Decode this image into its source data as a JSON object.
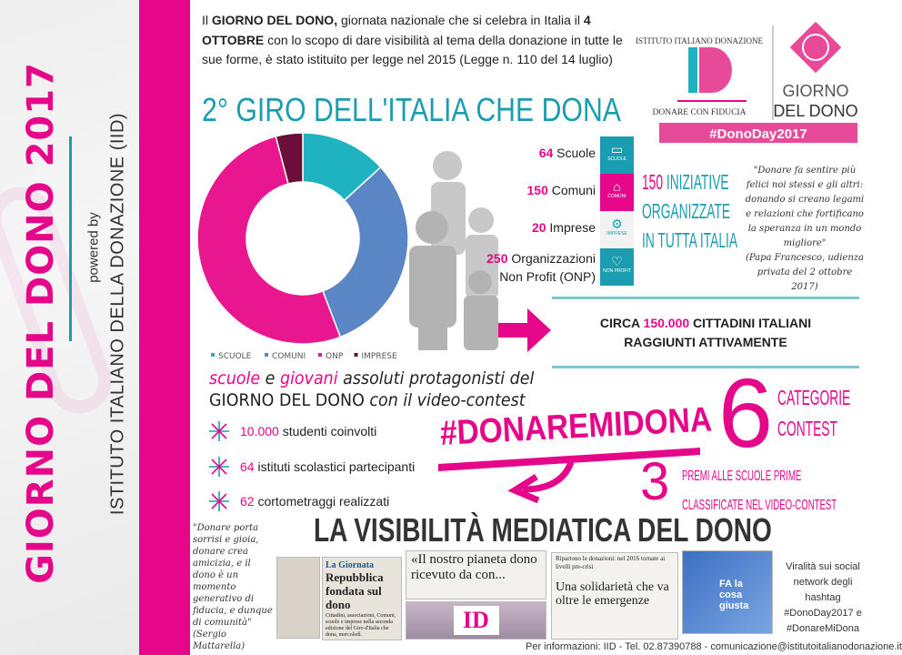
{
  "sidebar": {
    "title": "GIORNO DEL DONO 2017",
    "powered_by": "powered by",
    "organization": "ISTITUTO ITALIANO DELLA DONAZIONE (IID)"
  },
  "intro": {
    "p1": "Il ",
    "b1": "GIORNO DEL DONO,",
    "p2": " giornata nazionale che si celebra in Italia il ",
    "b2": "4 OTTOBRE",
    "p3": " con lo scopo di dare visibilità al tema della donazione in tutte le sue forme, è stato istituito per legge nel 2015 (Legge n. 110 del 14 luglio)"
  },
  "logo": {
    "arc_text": "ISTITUTO ITALIANO DONAZIONE",
    "monogram": "ID",
    "tagline": "DONARE CON FIDUCIA",
    "brand_line1": "GIORNO",
    "brand_line2": "DEL DONO",
    "hashtag": "#DonoDay2017"
  },
  "section_title": "2° GIRO DELL'ITALIA CHE DONA",
  "chart_data": {
    "type": "pie",
    "donut": true,
    "categories": [
      "SCUOLE",
      "COMUNI",
      "ONP",
      "IMPRESE"
    ],
    "values": [
      64,
      150,
      250,
      20
    ],
    "colors": [
      "#1fb3c2",
      "#5b86c6",
      "#e8168f",
      "#6a0f3a"
    ],
    "legend": "bottom"
  },
  "stats": [
    {
      "num": "64",
      "label": " Scuole"
    },
    {
      "num": "150",
      "label": " Comuni"
    },
    {
      "num": "20",
      "label": " Imprese"
    },
    {
      "num": "250",
      "label": " Organizzazioni",
      "label2": "Non Profit (ONP)"
    }
  ],
  "tiles": [
    {
      "icon": "book-icon",
      "glyph": "▭",
      "caption": "SCUOLE",
      "color": "#1a9db0"
    },
    {
      "icon": "building-icon",
      "glyph": "⌂",
      "caption": "COMUNI",
      "color": "#e6068a"
    },
    {
      "icon": "gears-icon",
      "glyph": "⚙",
      "caption": "IMPRESE",
      "color": "#f2f2f2"
    },
    {
      "icon": "heart-icon",
      "glyph": "♡",
      "caption": "NON PROFIT",
      "color": "#1a9db0"
    }
  ],
  "initiatives": {
    "num": "150",
    "line1": " INIZIATIVE",
    "line2": "ORGANIZZATE",
    "line3": "IN TUTTA ITALIA"
  },
  "quote_pope": {
    "text": "\"Donare fa sentire più felici noi stessi e gli altri: donando si creano legami e relazioni che fortificano la speranza in un mondo migliore\"",
    "author": "(Papa Francesco, udienza privata del 2 ottobre 2017)"
  },
  "reach": {
    "pre": "CIRCA ",
    "num": "150.000",
    "post": " CITTADINI ITALIANI",
    "line2": "RAGGIUNTI ATTIVAMENTE"
  },
  "protagonists": {
    "w1": "scuole",
    "w2": " e ",
    "w3": "giovani",
    "w4": " assoluti protagonisti del",
    "line2a": "GIORNO DEL DONO",
    "line2b": " con il video-contest"
  },
  "bullets": [
    {
      "num": "10.000",
      "text": " studenti coinvolti"
    },
    {
      "num": "64",
      "text": " istituti scolastici partecipanti"
    },
    {
      "num": "62",
      "text": " cortometraggi realizzati"
    }
  ],
  "contest": {
    "hashtag": "#DONAREMIDONA",
    "categories_num": "6",
    "categories_l1": "CATEGORIE",
    "categories_l2": "CONTEST",
    "prizes_num": "3",
    "prizes_l1": "PREMI ALLE SCUOLE PRIME",
    "prizes_l2": "CLASSIFICATE NEL VIDEO-CONTEST"
  },
  "media": {
    "title": "LA VISIBILITÀ MEDIATICA DEL DONO",
    "quote": "\"Donare porta sorrisi e gioia, donare crea amicizia, e il dono è un momento generativo di fiducia, e dunque di comunità\"",
    "quote_author": "(Sergio Mattarella)",
    "clip1_kicker": "La Giornata",
    "clip1_head": "Repubblica fondata sul dono",
    "clip1_body": "Cittadini, associazioni, Comuni, scuole e imprese nella seconda edizione del Giro d'Italia che dona, mercoledì.",
    "clip2_head": "«Il nostro pianeta dono ricevuto da con...",
    "clip3_kicker": "Ripartono le donazioni: nel 2016 tornate ai livelli pre-crisi",
    "clip3_head": "Una solidarietà che va oltre le emergenze",
    "clip4_text": "FA la cosa giusta",
    "viral": "Viralità sui social network degli hashtag #DonoDay2017 e #DonareMiDona"
  },
  "footer": "Per informazioni: IID - Tel. 02.87390788 - comunicazione@istitutoitalianodonazione.it"
}
